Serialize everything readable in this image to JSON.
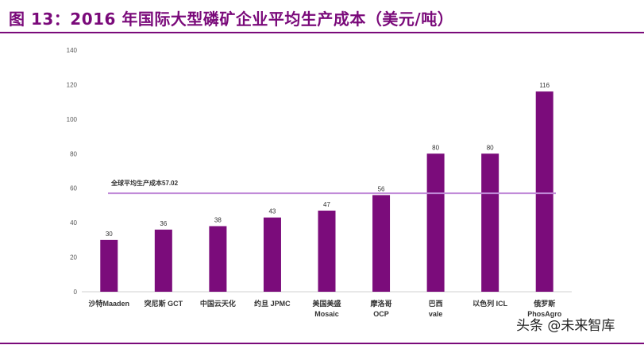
{
  "header": {
    "figure_title": "图 13：2016 年国际大型磷矿企业平均生产成本（美元/吨）"
  },
  "watermark": {
    "text": "头条 @未来智库"
  },
  "chart_data": {
    "type": "bar",
    "title": "2016 年国际大型磷矿企业平均生产成本（美元/吨）",
    "categories": [
      [
        "沙特Maaden"
      ],
      [
        "突尼斯 GCT"
      ],
      [
        "中国云天化"
      ],
      [
        "约旦 JPMC"
      ],
      [
        "美国美盛",
        "Mosaic"
      ],
      [
        "摩洛哥",
        "OCP"
      ],
      [
        "巴西",
        "vale"
      ],
      [
        "以色列 ICL"
      ],
      [
        "俄罗斯",
        "PhosAgro"
      ]
    ],
    "values": [
      30,
      36,
      38,
      43,
      47,
      56,
      80,
      80,
      116
    ],
    "ylim": [
      0,
      140
    ],
    "yticks": [
      0,
      20,
      40,
      60,
      80,
      100,
      120,
      140
    ],
    "grid": false,
    "bar_color": "#7b0c7b",
    "reference_line": {
      "label": "全球平均生产成本57.02",
      "value": 57.02,
      "color": "#c08ad8"
    }
  }
}
